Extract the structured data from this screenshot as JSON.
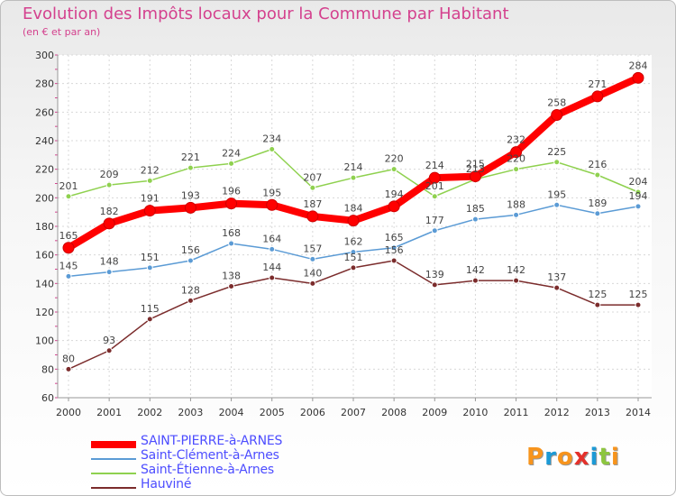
{
  "chart_data": {
    "type": "line",
    "title": "Evolution des Impôts locaux pour la Commune par Habitant",
    "subtitle": "(en € et par an)",
    "xlabel": "",
    "ylabel": "",
    "ylim": [
      60,
      300
    ],
    "yticks": [
      60,
      80,
      100,
      120,
      140,
      160,
      180,
      200,
      220,
      240,
      260,
      280,
      300
    ],
    "grid": true,
    "legend_position": "bottom-left",
    "x": [
      "2000",
      "2001",
      "2002",
      "2003",
      "2004",
      "2005",
      "2006",
      "2007",
      "2008",
      "2009",
      "2010",
      "2011",
      "2012",
      "2013",
      "2014"
    ],
    "series": [
      {
        "name": "SAINT-PIERRE-à-ARNES",
        "color": "#ff0000",
        "values": [
          165,
          182,
          191,
          193,
          196,
          195,
          187,
          184,
          194,
          214,
          215,
          232,
          258,
          271,
          284
        ]
      },
      {
        "name": "Saint-Clément-à-Arnes",
        "color": "#5b9bd5",
        "values": [
          145,
          148,
          151,
          156,
          168,
          164,
          157,
          162,
          165,
          177,
          185,
          188,
          195,
          189,
          194
        ]
      },
      {
        "name": "Saint-Étienne-à-Arnes",
        "color": "#8fd14f",
        "values": [
          201,
          209,
          212,
          221,
          224,
          234,
          207,
          214,
          220,
          201,
          213,
          220,
          225,
          216,
          204
        ]
      },
      {
        "name": "Hauviné",
        "color": "#7b2c2c",
        "values": [
          80,
          93,
          115,
          128,
          138,
          144,
          140,
          151,
          156,
          139,
          142,
          142,
          137,
          125,
          125
        ]
      }
    ]
  },
  "branding": {
    "logo_text": "Proxiti",
    "letter_colors": [
      "#f7941d",
      "#1c9ad6",
      "#f7941d",
      "#e4312b",
      "#1c9ad6",
      "#8dc63f",
      "#f7941d"
    ]
  }
}
